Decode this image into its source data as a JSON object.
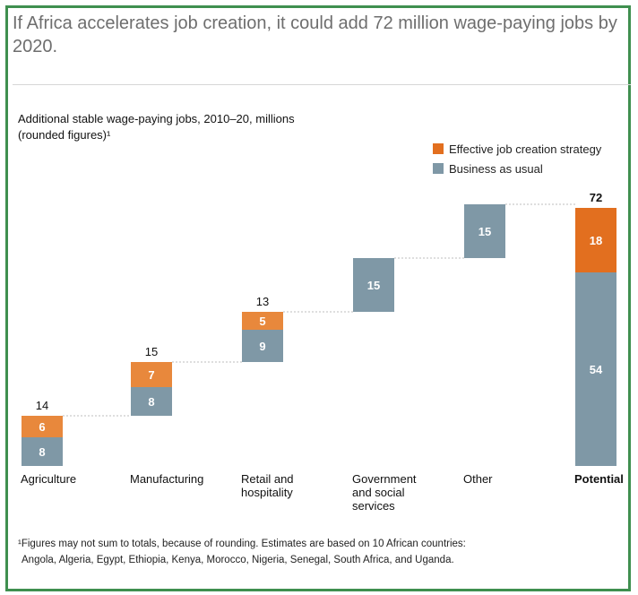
{
  "headline": "If Africa accelerates job creation, it could add 72 million wage-paying jobs by 2020.",
  "subtitle_line1": "Additional stable wage-paying jobs, 2010–20, millions",
  "subtitle_line2": "(rounded figures)¹",
  "legend": {
    "accelerated": "Effective job creation strategy",
    "baseline": "Business as usual"
  },
  "footnote_line1": "¹Figures may not sum to totals, because of rounding. Estimates are based on 10 African countries:",
  "footnote_line2": "Angola, Algeria, Egypt, Ethiopia, Kenya, Morocco, Nigeria, Senegal, South Africa, and Uganda.",
  "chart_data": {
    "type": "bar",
    "subtype": "waterfall-stacked",
    "categories": [
      [
        "Agriculture"
      ],
      [
        "Manufacturing"
      ],
      [
        "Retail and",
        "hospitality"
      ],
      [
        "Government",
        "and social",
        "services"
      ],
      [
        "Other"
      ],
      [
        "Potential"
      ]
    ],
    "series": [
      {
        "name": "Business as usual",
        "values": [
          8,
          8,
          9,
          15,
          15,
          54
        ]
      },
      {
        "name": "Effective job creation strategy",
        "values": [
          6,
          7,
          5,
          0,
          0,
          18
        ]
      }
    ],
    "totals": [
      "14",
      "15",
      "13",
      "",
      "",
      "72"
    ],
    "ylim": [
      0,
      72
    ],
    "colors": {
      "baseline": "#7f98a6",
      "accelerated": "#e8883c",
      "accelerated_total": "#e26f1f",
      "connector": "#bcbcbc"
    },
    "grid": false,
    "legend_position": "top-right"
  }
}
